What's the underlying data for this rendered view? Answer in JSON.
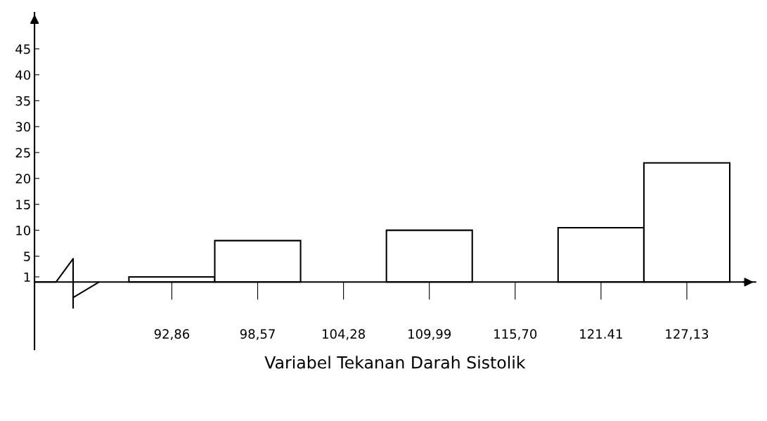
{
  "chart_data": {
    "type": "bar",
    "xlabel": "Variabel Tekanan Darah Sistolik",
    "categories": [
      "92,86",
      "98,57",
      "104,28",
      "109,99",
      "115,70",
      "121.41",
      "127,13"
    ],
    "values": [
      1,
      8,
      null,
      10,
      null,
      10.5,
      23
    ],
    "color": "#ffffff",
    "ylim": [
      -13,
      52
    ],
    "yticks": [
      1,
      5,
      10,
      15,
      20,
      25,
      30,
      35,
      40,
      45
    ],
    "grid": false,
    "legend": false
  }
}
